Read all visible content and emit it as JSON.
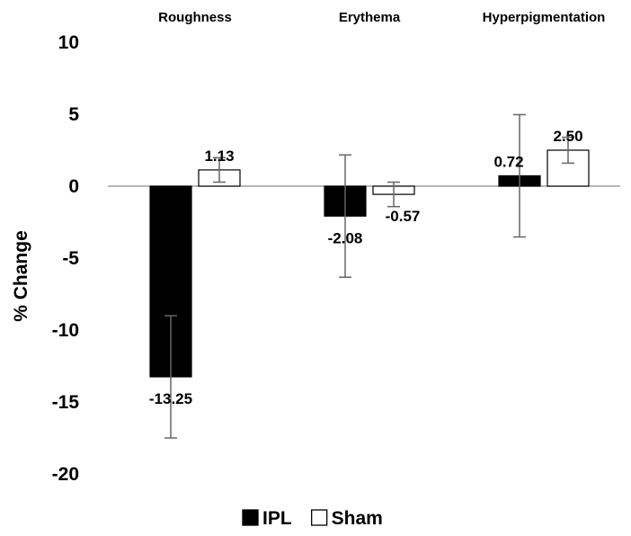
{
  "chart_data": {
    "type": "bar",
    "categories": [
      "Roughness",
      "Erythema",
      "Hyperpigmentation"
    ],
    "series": [
      {
        "name": "IPL",
        "values": [
          -13.25,
          -2.08,
          0.72
        ],
        "errors": [
          4.25,
          4.25,
          4.25
        ],
        "labels": [
          "-13.25",
          "-2.08",
          "0.72"
        ],
        "fill": "#000000"
      },
      {
        "name": "Sham",
        "values": [
          1.13,
          -0.57,
          2.5
        ],
        "errors": [
          0.85,
          0.85,
          0.9
        ],
        "labels": [
          "1.13",
          "-0.57",
          "2.50"
        ],
        "fill": "#ffffff"
      }
    ],
    "title": "",
    "xlabel": "",
    "ylabel": "% Change",
    "ylim": [
      -20,
      10
    ],
    "yticks": [
      10,
      5,
      0,
      -5,
      -10,
      -15,
      -20
    ],
    "grid": false,
    "legend_position": "bottom"
  }
}
